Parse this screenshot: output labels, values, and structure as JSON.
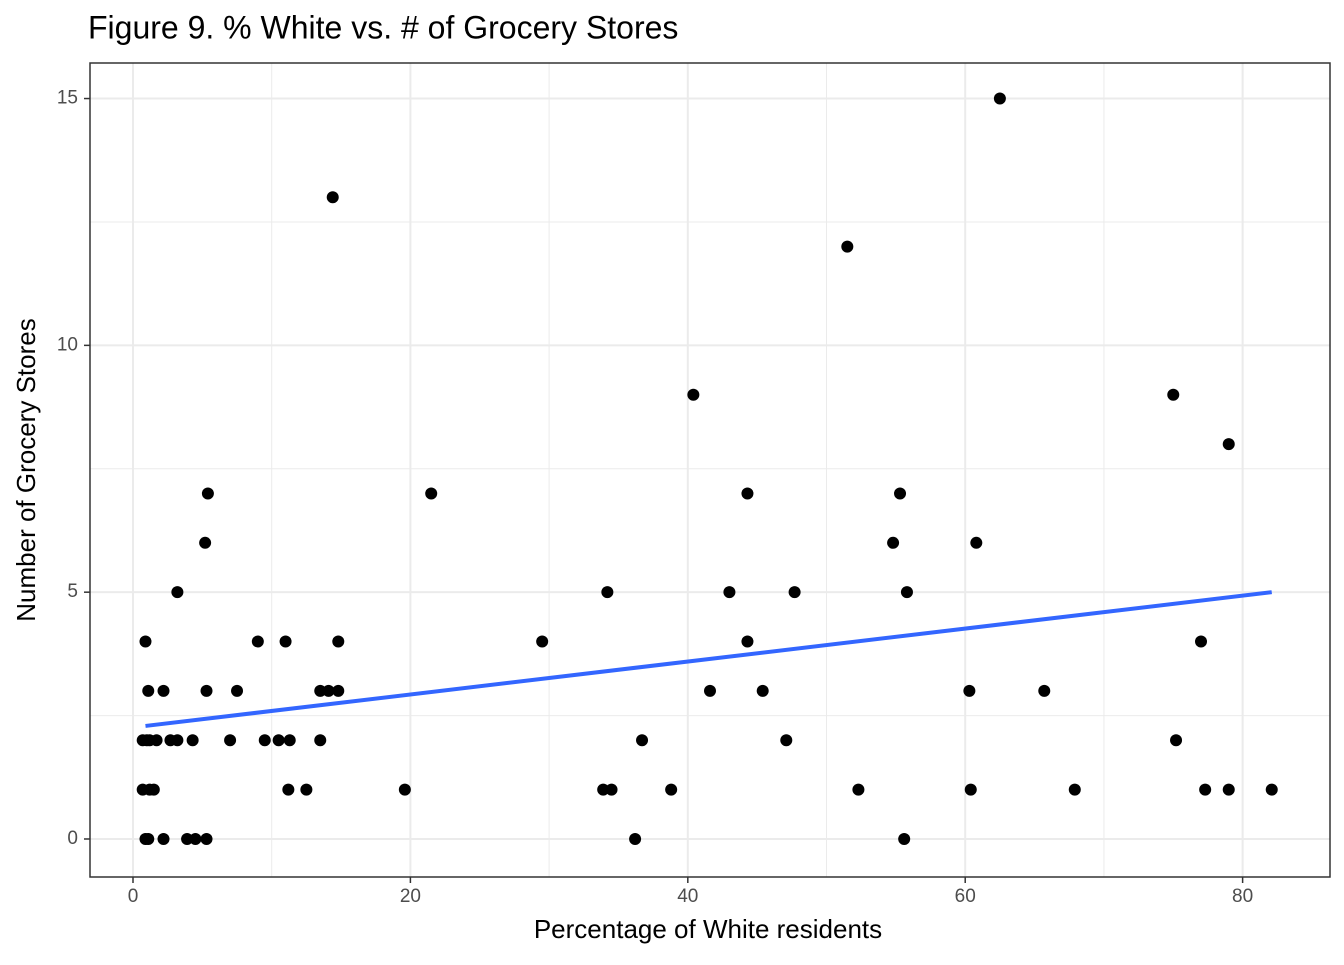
{
  "chart_data": {
    "type": "scatter",
    "title": "Figure 9. % White vs. # of Grocery Stores",
    "x_label": "Percentage of White residents",
    "y_label": "Number of Grocery Stores",
    "xlim": [
      -3.1,
      86.3
    ],
    "ylim": [
      -0.77,
      15.72
    ],
    "xticks": [
      0,
      20,
      40,
      60,
      80
    ],
    "yticks": [
      0,
      5,
      10,
      15
    ],
    "x_minor_grid": [
      10,
      30,
      50,
      70
    ],
    "y_minor_grid": [
      2.5,
      7.5,
      12.5
    ],
    "grid": true,
    "series": [
      {
        "color": "#000000",
        "x": [
          0.9,
          1.1,
          0.7,
          1.0,
          1.2,
          0.7,
          1.2,
          1.5,
          0.9,
          1.1,
          1.7,
          2.2,
          2.2,
          2.7,
          3.2,
          3.2,
          3.9,
          4.5,
          4.3,
          5.2,
          5.4,
          5.3,
          5.3,
          7.0,
          7.5,
          9.0,
          9.5,
          10.5,
          11.0,
          11.2,
          11.3,
          12.5,
          13.5,
          14.1,
          14.8,
          13.5,
          14.4,
          14.8,
          19.6,
          21.5,
          29.5,
          33.9,
          34.5,
          34.2,
          36.2,
          36.7,
          38.8,
          40.4,
          41.6,
          43.0,
          44.3,
          44.3,
          45.4,
          47.1,
          47.7,
          51.5,
          52.3,
          54.8,
          55.3,
          55.6,
          55.8,
          60.3,
          60.4,
          60.8,
          62.5,
          65.7,
          67.9,
          75.0,
          75.2,
          77.0,
          77.3,
          79.0,
          79.0,
          82.1
        ],
        "values": [
          4,
          3,
          2,
          2,
          2,
          1,
          1,
          1,
          0,
          0,
          2,
          3,
          0,
          2,
          2,
          5,
          0,
          0,
          2,
          6,
          7,
          3,
          0,
          2,
          3,
          4,
          2,
          2,
          4,
          1,
          2,
          1,
          3,
          3,
          3,
          2,
          13,
          4,
          1,
          7,
          4,
          1,
          1,
          5,
          0,
          2,
          1,
          9,
          3,
          5,
          4,
          7,
          3,
          2,
          5,
          12,
          1,
          6,
          7,
          0,
          5,
          3,
          1,
          6,
          15,
          3,
          1,
          9,
          2,
          4,
          1,
          8,
          1,
          1
        ]
      }
    ],
    "trend": {
      "x": [
        0.9,
        82.1
      ],
      "y": [
        2.29,
        5.0
      ],
      "color": "#3366ff"
    }
  }
}
